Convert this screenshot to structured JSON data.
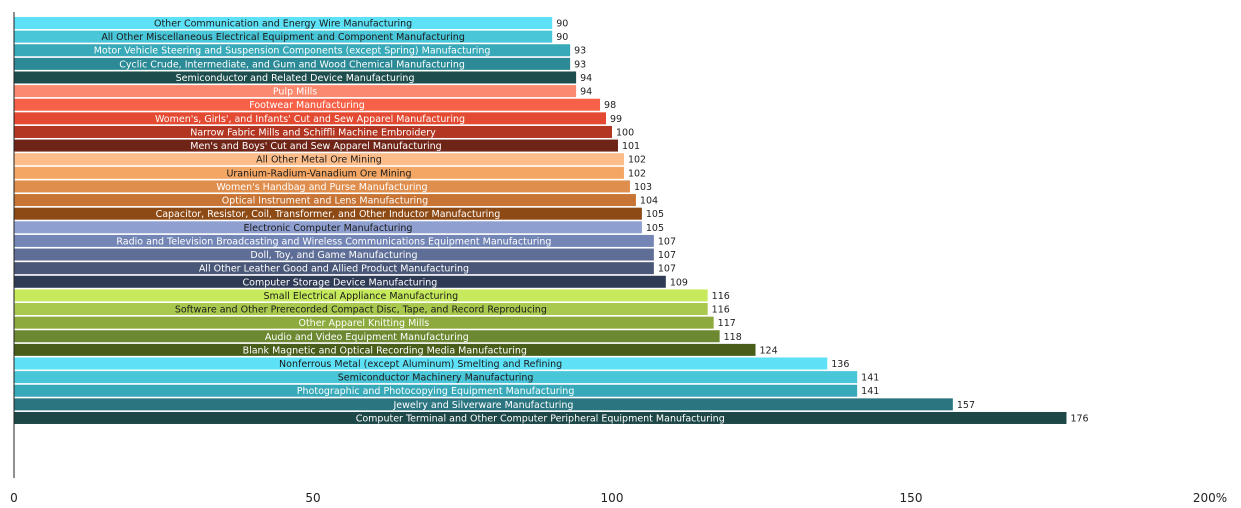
{
  "chart_data": {
    "type": "bar",
    "orientation": "horizontal",
    "xlim": [
      0,
      200
    ],
    "x_ticks": [
      "0",
      "50",
      "100",
      "150",
      "200%"
    ],
    "grid": false,
    "legend": "none",
    "categories": [
      "Other Communication and Energy Wire Manufacturing",
      "All Other Miscellaneous Electrical Equipment and Component Manufacturing",
      "Motor Vehicle Steering and Suspension Components (except Spring) Manufacturing",
      "Cyclic Crude, Intermediate, and Gum and Wood Chemical Manufacturing",
      "Semiconductor and Related Device Manufacturing",
      "Pulp Mills",
      "Footwear Manufacturing",
      "Women's, Girls', and Infants' Cut and Sew Apparel Manufacturing",
      "Narrow Fabric Mills and Schiffli Machine Embroidery",
      "Men's and Boys' Cut and Sew Apparel Manufacturing",
      "All Other Metal Ore Mining",
      "Uranium-Radium-Vanadium Ore Mining",
      "Women's Handbag and Purse Manufacturing",
      "Optical Instrument and Lens Manufacturing",
      "Capacitor, Resistor, Coil, Transformer, and Other Inductor Manufacturing",
      "Electronic Computer Manufacturing",
      "Radio and Television Broadcasting and Wireless Communications Equipment Manufacturing",
      "Doll, Toy, and Game Manufacturing",
      "All Other Leather Good and Allied Product Manufacturing",
      "Computer Storage Device Manufacturing",
      "Small Electrical Appliance Manufacturing",
      "Software and Other Prerecorded Compact Disc, Tape, and Record Reproducing",
      "Other Apparel Knitting Mills",
      "Audio and Video Equipment Manufacturing",
      "Blank Magnetic and Optical Recording Media Manufacturing",
      "Nonferrous Metal (except Aluminum) Smelting and Refining",
      "Semiconductor Machinery Manufacturing",
      "Photographic and Photocopying Equipment Manufacturing",
      "Jewelry and Silverware Manufacturing",
      "Computer Terminal and Other Computer Peripheral Equipment Manufacturing"
    ],
    "values": [
      90,
      90,
      93,
      93,
      94,
      94,
      98,
      99,
      100,
      101,
      102,
      102,
      103,
      104,
      105,
      105,
      107,
      107,
      107,
      109,
      116,
      116,
      117,
      118,
      124,
      136,
      141,
      141,
      157,
      176
    ],
    "value_labels": [
      "90",
      "90",
      "93",
      "93",
      "94",
      "94",
      "98",
      "99",
      "100",
      "101",
      "102",
      "102",
      "103",
      "104",
      "105",
      "105",
      "107",
      "107",
      "107",
      "109",
      "116",
      "116",
      "117",
      "118",
      "124",
      "136",
      "141",
      "141",
      "157",
      "176"
    ],
    "colors": [
      "#5ce1f6",
      "#49c6d8",
      "#38a9b8",
      "#2b8a96",
      "#1e4d4d",
      "#f9896f",
      "#f76148",
      "#e34a31",
      "#b23622",
      "#6e2416",
      "#fcbd8b",
      "#f4a765",
      "#e08e4e",
      "#c87434",
      "#8e4a14",
      "#8fa0d0",
      "#7386b6",
      "#5e6e96",
      "#4a5778",
      "#2f3b55",
      "#c7ea5c",
      "#a9c94e",
      "#8caa3d",
      "#6c8830",
      "#4a5e1c",
      "#5ce1f6",
      "#49c6d8",
      "#38a9b8",
      "#2b7580",
      "#1e4747"
    ],
    "label_colors": [
      "#1a1a1a",
      "#1a1a1a",
      "#ffffff",
      "#ffffff",
      "#ffffff",
      "#ffffff",
      "#ffffff",
      "#ffffff",
      "#ffffff",
      "#ffffff",
      "#1a1a1a",
      "#1a1a1a",
      "#ffffff",
      "#ffffff",
      "#ffffff",
      "#1a1a1a",
      "#ffffff",
      "#ffffff",
      "#ffffff",
      "#ffffff",
      "#1a1a1a",
      "#1a1a1a",
      "#ffffff",
      "#ffffff",
      "#ffffff",
      "#1a1a1a",
      "#1a1a1a",
      "#ffffff",
      "#ffffff",
      "#ffffff"
    ]
  }
}
